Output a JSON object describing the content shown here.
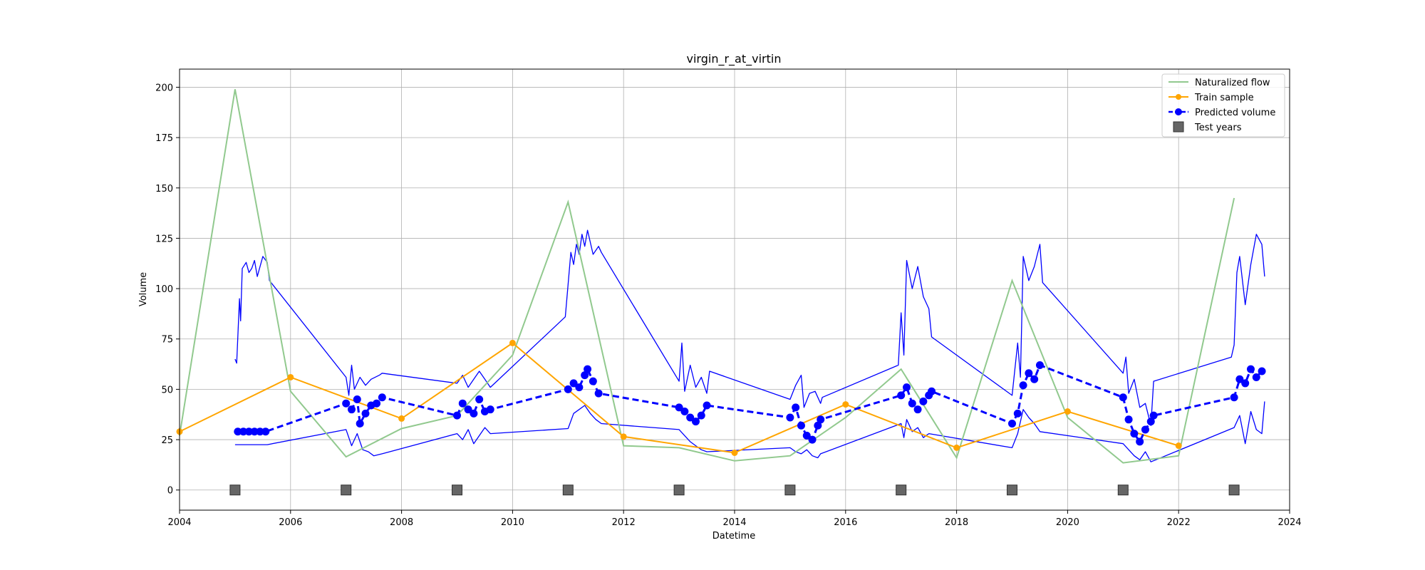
{
  "chart_data": {
    "type": "line",
    "title": "virgin_r_at_virtin",
    "xlabel": "Datetime",
    "ylabel": "Volume",
    "xlim": [
      2004,
      2024
    ],
    "ylim": [
      -10,
      209
    ],
    "xticks": [
      2004,
      2006,
      2008,
      2010,
      2012,
      2014,
      2016,
      2018,
      2020,
      2022,
      2024
    ],
    "yticks": [
      0,
      25,
      50,
      75,
      100,
      125,
      150,
      175,
      200
    ],
    "grid": true,
    "legend_position": "top-right",
    "series": [
      {
        "name": "Naturalized flow",
        "kind": "line",
        "color": "#91c98e",
        "points": [
          [
            2004,
            27
          ],
          [
            2005,
            199
          ],
          [
            2006,
            49
          ],
          [
            2007,
            16.5
          ],
          [
            2008,
            30.5
          ],
          [
            2009,
            37
          ],
          [
            2010,
            67
          ],
          [
            2011,
            143
          ],
          [
            2012,
            22
          ],
          [
            2013,
            21
          ],
          [
            2014,
            14.5
          ],
          [
            2015,
            17
          ],
          [
            2016,
            36
          ],
          [
            2017,
            60
          ],
          [
            2018,
            16
          ],
          [
            2019,
            104
          ],
          [
            2020,
            36
          ],
          [
            2021,
            13.5
          ],
          [
            2022,
            17
          ],
          [
            2023,
            145
          ]
        ]
      },
      {
        "name": "Train sample",
        "kind": "line-marker",
        "color": "#ffa500",
        "points": [
          [
            2004,
            29
          ],
          [
            2006,
            56
          ],
          [
            2008,
            35.5
          ],
          [
            2010,
            73
          ],
          [
            2012,
            26.5
          ],
          [
            2014,
            18.5
          ],
          [
            2016,
            42.5
          ],
          [
            2018,
            21
          ],
          [
            2020,
            39
          ],
          [
            2022,
            22
          ]
        ]
      },
      {
        "name": "Predicted volume",
        "kind": "dashed-marker",
        "color": "#0000ff",
        "points": [
          [
            2005.05,
            29
          ],
          [
            2005.15,
            29
          ],
          [
            2005.25,
            29
          ],
          [
            2005.35,
            29
          ],
          [
            2005.45,
            29
          ],
          [
            2005.55,
            29
          ],
          [
            2007.0,
            43
          ],
          [
            2007.1,
            40
          ],
          [
            2007.2,
            45
          ],
          [
            2007.25,
            33
          ],
          [
            2007.35,
            38
          ],
          [
            2007.45,
            42
          ],
          [
            2007.55,
            43
          ],
          [
            2007.65,
            46
          ],
          [
            2009.0,
            37
          ],
          [
            2009.1,
            43
          ],
          [
            2009.2,
            40
          ],
          [
            2009.3,
            38
          ],
          [
            2009.4,
            45
          ],
          [
            2009.5,
            39
          ],
          [
            2009.6,
            40
          ],
          [
            2011.0,
            50
          ],
          [
            2011.1,
            53
          ],
          [
            2011.2,
            51
          ],
          [
            2011.3,
            57
          ],
          [
            2011.35,
            60
          ],
          [
            2011.45,
            54
          ],
          [
            2011.55,
            48
          ],
          [
            2013.0,
            41
          ],
          [
            2013.1,
            39
          ],
          [
            2013.2,
            36
          ],
          [
            2013.3,
            34
          ],
          [
            2013.4,
            37
          ],
          [
            2013.5,
            42
          ],
          [
            2015.0,
            36
          ],
          [
            2015.1,
            41
          ],
          [
            2015.2,
            32
          ],
          [
            2015.3,
            27
          ],
          [
            2015.4,
            25
          ],
          [
            2015.5,
            32
          ],
          [
            2015.55,
            35
          ],
          [
            2017.0,
            47
          ],
          [
            2017.1,
            51
          ],
          [
            2017.2,
            43
          ],
          [
            2017.3,
            40
          ],
          [
            2017.4,
            44
          ],
          [
            2017.5,
            47
          ],
          [
            2017.55,
            49
          ],
          [
            2019.0,
            33
          ],
          [
            2019.1,
            38
          ],
          [
            2019.2,
            52
          ],
          [
            2019.3,
            58
          ],
          [
            2019.4,
            55
          ],
          [
            2019.5,
            62
          ],
          [
            2021.0,
            46
          ],
          [
            2021.1,
            35
          ],
          [
            2021.2,
            28
          ],
          [
            2021.3,
            24
          ],
          [
            2021.4,
            30
          ],
          [
            2021.5,
            34
          ],
          [
            2021.55,
            37
          ],
          [
            2023.0,
            46
          ],
          [
            2023.1,
            55
          ],
          [
            2023.2,
            53
          ],
          [
            2023.3,
            60
          ],
          [
            2023.4,
            56
          ],
          [
            2023.5,
            59
          ]
        ]
      },
      {
        "name": "Test years",
        "kind": "square-marker",
        "color": "#666666",
        "points": [
          [
            2005,
            0
          ],
          [
            2007,
            0
          ],
          [
            2009,
            0
          ],
          [
            2011,
            0
          ],
          [
            2013,
            0
          ],
          [
            2015,
            0
          ],
          [
            2017,
            0
          ],
          [
            2019,
            0
          ],
          [
            2021,
            0
          ],
          [
            2023,
            0
          ]
        ]
      }
    ],
    "unlabeled_series": [
      {
        "role": "upper-band",
        "color": "#0000ff",
        "points": [
          [
            2005.0,
            65
          ],
          [
            2005.03,
            63
          ],
          [
            2005.08,
            95
          ],
          [
            2005.1,
            84
          ],
          [
            2005.13,
            110
          ],
          [
            2005.2,
            113
          ],
          [
            2005.25,
            108
          ],
          [
            2005.3,
            110
          ],
          [
            2005.35,
            114
          ],
          [
            2005.4,
            106
          ],
          [
            2005.5,
            116
          ],
          [
            2005.58,
            113
          ],
          [
            2005.62,
            104
          ],
          [
            2007.0,
            56
          ],
          [
            2007.05,
            47
          ],
          [
            2007.1,
            62
          ],
          [
            2007.15,
            50
          ],
          [
            2007.25,
            56
          ],
          [
            2007.35,
            52
          ],
          [
            2007.45,
            55
          ],
          [
            2007.6,
            57
          ],
          [
            2007.65,
            58
          ],
          [
            2009.0,
            53
          ],
          [
            2009.1,
            57
          ],
          [
            2009.2,
            51
          ],
          [
            2009.3,
            55
          ],
          [
            2009.4,
            59
          ],
          [
            2009.5,
            55
          ],
          [
            2009.6,
            51
          ],
          [
            2010.95,
            86
          ],
          [
            2011.0,
            102
          ],
          [
            2011.05,
            118
          ],
          [
            2011.1,
            112
          ],
          [
            2011.15,
            122
          ],
          [
            2011.2,
            117
          ],
          [
            2011.25,
            127
          ],
          [
            2011.3,
            121
          ],
          [
            2011.35,
            129
          ],
          [
            2011.45,
            117
          ],
          [
            2011.55,
            121
          ],
          [
            2011.6,
            118
          ],
          [
            2013.0,
            54
          ],
          [
            2013.05,
            73
          ],
          [
            2013.1,
            49
          ],
          [
            2013.2,
            62
          ],
          [
            2013.3,
            51
          ],
          [
            2013.4,
            56
          ],
          [
            2013.5,
            48
          ],
          [
            2013.55,
            59
          ],
          [
            2015.0,
            45
          ],
          [
            2015.1,
            52
          ],
          [
            2015.2,
            57
          ],
          [
            2015.25,
            41
          ],
          [
            2015.35,
            48
          ],
          [
            2015.45,
            49
          ],
          [
            2015.55,
            43
          ],
          [
            2015.58,
            46
          ],
          [
            2016.95,
            62
          ],
          [
            2017.0,
            88
          ],
          [
            2017.05,
            67
          ],
          [
            2017.1,
            114
          ],
          [
            2017.2,
            100
          ],
          [
            2017.3,
            111
          ],
          [
            2017.4,
            96
          ],
          [
            2017.5,
            90
          ],
          [
            2017.55,
            76
          ],
          [
            2019.0,
            47
          ],
          [
            2019.1,
            73
          ],
          [
            2019.15,
            56
          ],
          [
            2019.2,
            116
          ],
          [
            2019.3,
            104
          ],
          [
            2019.4,
            111
          ],
          [
            2019.5,
            122
          ],
          [
            2019.55,
            103
          ],
          [
            2021.0,
            58
          ],
          [
            2021.05,
            66
          ],
          [
            2021.1,
            48
          ],
          [
            2021.2,
            55
          ],
          [
            2021.3,
            41
          ],
          [
            2021.4,
            43
          ],
          [
            2021.5,
            32
          ],
          [
            2021.55,
            54
          ],
          [
            2022.95,
            66
          ],
          [
            2023.0,
            72
          ],
          [
            2023.05,
            108
          ],
          [
            2023.1,
            116
          ],
          [
            2023.2,
            92
          ],
          [
            2023.3,
            112
          ],
          [
            2023.4,
            127
          ],
          [
            2023.5,
            122
          ],
          [
            2023.55,
            106
          ]
        ]
      },
      {
        "role": "lower-band",
        "color": "#0000ff",
        "points": [
          [
            2005.0,
            22.5
          ],
          [
            2005.58,
            22.5
          ],
          [
            2007.0,
            30
          ],
          [
            2007.1,
            22
          ],
          [
            2007.2,
            28
          ],
          [
            2007.3,
            20
          ],
          [
            2007.4,
            19
          ],
          [
            2007.5,
            17
          ],
          [
            2007.65,
            18
          ],
          [
            2009.0,
            28
          ],
          [
            2009.1,
            25
          ],
          [
            2009.2,
            30
          ],
          [
            2009.3,
            23
          ],
          [
            2009.4,
            27
          ],
          [
            2009.5,
            31
          ],
          [
            2009.6,
            28
          ],
          [
            2011.0,
            30.5
          ],
          [
            2011.1,
            38
          ],
          [
            2011.2,
            40
          ],
          [
            2011.3,
            42
          ],
          [
            2011.4,
            38
          ],
          [
            2011.5,
            35
          ],
          [
            2011.6,
            33
          ],
          [
            2013.0,
            30
          ],
          [
            2013.1,
            27
          ],
          [
            2013.2,
            24
          ],
          [
            2013.3,
            22
          ],
          [
            2013.4,
            20
          ],
          [
            2013.5,
            19
          ],
          [
            2015.0,
            21
          ],
          [
            2015.1,
            19
          ],
          [
            2015.2,
            18
          ],
          [
            2015.3,
            20
          ],
          [
            2015.4,
            17
          ],
          [
            2015.5,
            16
          ],
          [
            2015.55,
            18
          ],
          [
            2017.0,
            33
          ],
          [
            2017.05,
            26
          ],
          [
            2017.1,
            35
          ],
          [
            2017.2,
            29
          ],
          [
            2017.3,
            31
          ],
          [
            2017.4,
            26
          ],
          [
            2017.5,
            28
          ],
          [
            2019.0,
            21
          ],
          [
            2019.1,
            28
          ],
          [
            2019.2,
            40
          ],
          [
            2019.3,
            36
          ],
          [
            2019.4,
            33
          ],
          [
            2019.5,
            29
          ],
          [
            2021.0,
            23
          ],
          [
            2021.1,
            20
          ],
          [
            2021.2,
            17
          ],
          [
            2021.3,
            15
          ],
          [
            2021.4,
            19
          ],
          [
            2021.5,
            14
          ],
          [
            2023.0,
            31
          ],
          [
            2023.1,
            37
          ],
          [
            2023.2,
            23
          ],
          [
            2023.3,
            39
          ],
          [
            2023.4,
            30
          ],
          [
            2023.5,
            28
          ],
          [
            2023.55,
            44
          ]
        ]
      }
    ]
  }
}
